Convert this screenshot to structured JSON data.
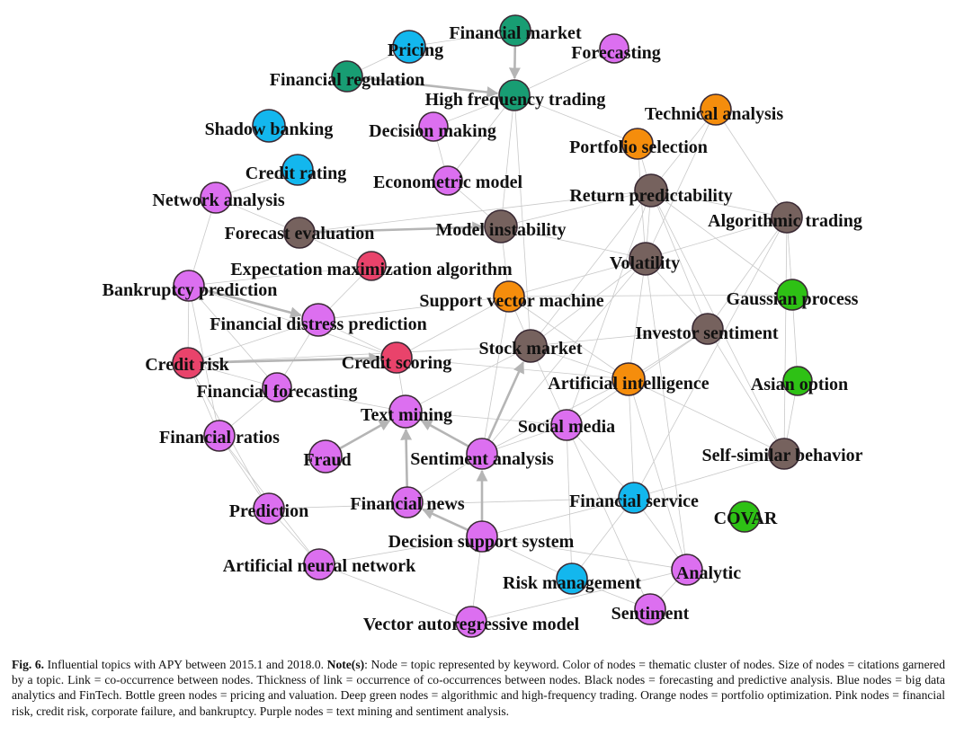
{
  "figure": {
    "colors": {
      "blue": "#13b7ee",
      "bottle_green": "#189d73",
      "orange": "#f58d0c",
      "brown": "#76625e",
      "red": "#e9436b",
      "magenta": "#dc6ff0",
      "green": "#2ec115",
      "edge": "#c9c9c9",
      "arrow": "#b5b5b5"
    },
    "nodes": [
      {
        "id": "financial-market",
        "label": "Financial market",
        "color": "bottle_green"
      },
      {
        "id": "pricing",
        "label": "Pricing",
        "color": "blue"
      },
      {
        "id": "forecasting",
        "label": "Forecasting",
        "color": "magenta"
      },
      {
        "id": "financial-regulation",
        "label": "Financial regulation",
        "color": "bottle_green"
      },
      {
        "id": "high-frequency-trading",
        "label": "High frequency trading",
        "color": "bottle_green"
      },
      {
        "id": "technical-analysis",
        "label": "Technical analysis",
        "color": "orange"
      },
      {
        "id": "shadow-banking",
        "label": "Shadow banking",
        "color": "blue"
      },
      {
        "id": "decision-making",
        "label": "Decision making",
        "color": "magenta"
      },
      {
        "id": "portfolio-selection",
        "label": "Portfolio selection",
        "color": "orange"
      },
      {
        "id": "credit-rating",
        "label": "Credit rating",
        "color": "blue"
      },
      {
        "id": "econometric-model",
        "label": "Econometric model",
        "color": "magenta"
      },
      {
        "id": "network-analysis",
        "label": "Network analysis",
        "color": "magenta"
      },
      {
        "id": "return-predictability",
        "label": "Return predictability",
        "color": "brown"
      },
      {
        "id": "algorithmic-trading",
        "label": "Algorithmic trading",
        "color": "brown"
      },
      {
        "id": "forecast-evaluation",
        "label": "Forecast evaluation",
        "color": "brown"
      },
      {
        "id": "model-instability",
        "label": "Model instability",
        "color": "brown"
      },
      {
        "id": "expectation-maximization-algorithm",
        "label": "Expectation maximization algorithm",
        "color": "red"
      },
      {
        "id": "volatility",
        "label": "Volatility",
        "color": "brown"
      },
      {
        "id": "bankruptcy-prediction",
        "label": "Bankruptcy prediction",
        "color": "magenta"
      },
      {
        "id": "support-vector-machine",
        "label": "Support vector machine",
        "color": "orange"
      },
      {
        "id": "gaussian-process",
        "label": "Gaussian process",
        "color": "green"
      },
      {
        "id": "financial-distress-prediction",
        "label": "Financial distress prediction",
        "color": "magenta"
      },
      {
        "id": "investor-sentiment",
        "label": "Investor sentiment",
        "color": "brown"
      },
      {
        "id": "stock-market",
        "label": "Stock market",
        "color": "brown"
      },
      {
        "id": "credit-risk",
        "label": "Credit risk",
        "color": "red"
      },
      {
        "id": "credit-scoring",
        "label": "Credit scoring",
        "color": "red"
      },
      {
        "id": "artificial-intelligence",
        "label": "Artificial intelligence",
        "color": "orange"
      },
      {
        "id": "asian-option",
        "label": "Asian option",
        "color": "green"
      },
      {
        "id": "financial-forecasting",
        "label": "Financial forecasting",
        "color": "magenta"
      },
      {
        "id": "text-mining",
        "label": "Text mining",
        "color": "magenta"
      },
      {
        "id": "social-media",
        "label": "Social media",
        "color": "magenta"
      },
      {
        "id": "financial-ratios",
        "label": "Financial ratios",
        "color": "magenta"
      },
      {
        "id": "fraud",
        "label": "Fraud",
        "color": "magenta"
      },
      {
        "id": "sentiment-analysis",
        "label": "Sentiment analysis",
        "color": "magenta"
      },
      {
        "id": "self-similar-behavior",
        "label": "Self-similar behavior",
        "color": "brown"
      },
      {
        "id": "financial-news",
        "label": "Financial news",
        "color": "magenta"
      },
      {
        "id": "financial-service",
        "label": "Financial service",
        "color": "blue"
      },
      {
        "id": "prediction",
        "label": "Prediction",
        "color": "magenta"
      },
      {
        "id": "covar",
        "label": "COVAR",
        "color": "green"
      },
      {
        "id": "decision-support-system",
        "label": "Decision support system",
        "color": "magenta"
      },
      {
        "id": "artificial-neural-network",
        "label": "Artificial neural network",
        "color": "magenta"
      },
      {
        "id": "analytic",
        "label": "Analytic",
        "color": "magenta"
      },
      {
        "id": "risk-management",
        "label": "Risk management",
        "color": "blue"
      },
      {
        "id": "sentiment",
        "label": "Sentiment",
        "color": "magenta"
      },
      {
        "id": "vector-autoregressive-model",
        "label": "Vector autoregressive model",
        "color": "magenta"
      }
    ],
    "arrows": [
      [
        "financial-market",
        "high-frequency-trading"
      ],
      [
        "financial-regulation",
        "high-frequency-trading"
      ],
      [
        "forecast-evaluation",
        "model-instability"
      ],
      [
        "bankruptcy-prediction",
        "financial-distress-prediction"
      ],
      [
        "credit-risk",
        "credit-scoring"
      ],
      [
        "fraud",
        "text-mining"
      ],
      [
        "financial-news",
        "text-mining"
      ],
      [
        "sentiment-analysis",
        "text-mining"
      ],
      [
        "sentiment-analysis",
        "stock-market"
      ],
      [
        "decision-support-system",
        "sentiment-analysis"
      ],
      [
        "decision-support-system",
        "financial-news"
      ]
    ]
  },
  "caption": {
    "label": "Fig. 6.",
    "part1": "Influential topics with APY between 2015.1 and 2018.0.",
    "note_label": "Note(s)",
    "part2": ": Node = topic represented by keyword. Color of nodes = thematic cluster of nodes. Size of nodes = citations garnered by a topic. Link = co-occurrence between nodes. Thickness of link = occurrence of co-occurrences between nodes. Black nodes = forecasting and predictive analysis. Blue nodes = big data analytics and FinTech. Bottle green nodes = pricing and valuation. Deep green nodes = algorithmic and high-frequency trading. Orange nodes = portfolio optimization. Pink nodes = financial risk, credit risk, corporate failure, and bankruptcy. Purple nodes = text mining and sentiment analysis."
  }
}
